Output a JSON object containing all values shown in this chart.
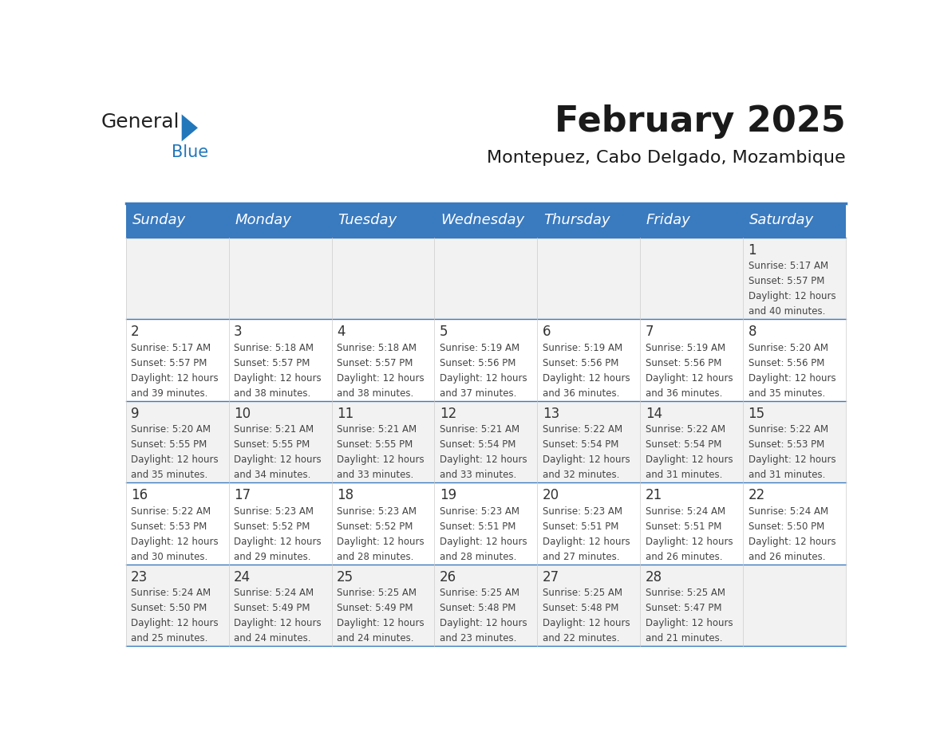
{
  "title": "February 2025",
  "subtitle": "Montepuez, Cabo Delgado, Mozambique",
  "header_bg": "#3a7abf",
  "header_text": "#ffffff",
  "odd_row_bg": "#f2f2f2",
  "even_row_bg": "#ffffff",
  "day_headers": [
    "Sunday",
    "Monday",
    "Tuesday",
    "Wednesday",
    "Thursday",
    "Friday",
    "Saturday"
  ],
  "days": [
    {
      "day": 1,
      "col": 6,
      "row": 0,
      "sunrise": "5:17 AM",
      "sunset": "5:57 PM",
      "daylight_min": "40"
    },
    {
      "day": 2,
      "col": 0,
      "row": 1,
      "sunrise": "5:17 AM",
      "sunset": "5:57 PM",
      "daylight_min": "39"
    },
    {
      "day": 3,
      "col": 1,
      "row": 1,
      "sunrise": "5:18 AM",
      "sunset": "5:57 PM",
      "daylight_min": "38"
    },
    {
      "day": 4,
      "col": 2,
      "row": 1,
      "sunrise": "5:18 AM",
      "sunset": "5:57 PM",
      "daylight_min": "38"
    },
    {
      "day": 5,
      "col": 3,
      "row": 1,
      "sunrise": "5:19 AM",
      "sunset": "5:56 PM",
      "daylight_min": "37"
    },
    {
      "day": 6,
      "col": 4,
      "row": 1,
      "sunrise": "5:19 AM",
      "sunset": "5:56 PM",
      "daylight_min": "36"
    },
    {
      "day": 7,
      "col": 5,
      "row": 1,
      "sunrise": "5:19 AM",
      "sunset": "5:56 PM",
      "daylight_min": "36"
    },
    {
      "day": 8,
      "col": 6,
      "row": 1,
      "sunrise": "5:20 AM",
      "sunset": "5:56 PM",
      "daylight_min": "35"
    },
    {
      "day": 9,
      "col": 0,
      "row": 2,
      "sunrise": "5:20 AM",
      "sunset": "5:55 PM",
      "daylight_min": "35"
    },
    {
      "day": 10,
      "col": 1,
      "row": 2,
      "sunrise": "5:21 AM",
      "sunset": "5:55 PM",
      "daylight_min": "34"
    },
    {
      "day": 11,
      "col": 2,
      "row": 2,
      "sunrise": "5:21 AM",
      "sunset": "5:55 PM",
      "daylight_min": "33"
    },
    {
      "day": 12,
      "col": 3,
      "row": 2,
      "sunrise": "5:21 AM",
      "sunset": "5:54 PM",
      "daylight_min": "33"
    },
    {
      "day": 13,
      "col": 4,
      "row": 2,
      "sunrise": "5:22 AM",
      "sunset": "5:54 PM",
      "daylight_min": "32"
    },
    {
      "day": 14,
      "col": 5,
      "row": 2,
      "sunrise": "5:22 AM",
      "sunset": "5:54 PM",
      "daylight_min": "31"
    },
    {
      "day": 15,
      "col": 6,
      "row": 2,
      "sunrise": "5:22 AM",
      "sunset": "5:53 PM",
      "daylight_min": "31"
    },
    {
      "day": 16,
      "col": 0,
      "row": 3,
      "sunrise": "5:22 AM",
      "sunset": "5:53 PM",
      "daylight_min": "30"
    },
    {
      "day": 17,
      "col": 1,
      "row": 3,
      "sunrise": "5:23 AM",
      "sunset": "5:52 PM",
      "daylight_min": "29"
    },
    {
      "day": 18,
      "col": 2,
      "row": 3,
      "sunrise": "5:23 AM",
      "sunset": "5:52 PM",
      "daylight_min": "28"
    },
    {
      "day": 19,
      "col": 3,
      "row": 3,
      "sunrise": "5:23 AM",
      "sunset": "5:51 PM",
      "daylight_min": "28"
    },
    {
      "day": 20,
      "col": 4,
      "row": 3,
      "sunrise": "5:23 AM",
      "sunset": "5:51 PM",
      "daylight_min": "27"
    },
    {
      "day": 21,
      "col": 5,
      "row": 3,
      "sunrise": "5:24 AM",
      "sunset": "5:51 PM",
      "daylight_min": "26"
    },
    {
      "day": 22,
      "col": 6,
      "row": 3,
      "sunrise": "5:24 AM",
      "sunset": "5:50 PM",
      "daylight_min": "26"
    },
    {
      "day": 23,
      "col": 0,
      "row": 4,
      "sunrise": "5:24 AM",
      "sunset": "5:50 PM",
      "daylight_min": "25"
    },
    {
      "day": 24,
      "col": 1,
      "row": 4,
      "sunrise": "5:24 AM",
      "sunset": "5:49 PM",
      "daylight_min": "24"
    },
    {
      "day": 25,
      "col": 2,
      "row": 4,
      "sunrise": "5:25 AM",
      "sunset": "5:49 PM",
      "daylight_min": "24"
    },
    {
      "day": 26,
      "col": 3,
      "row": 4,
      "sunrise": "5:25 AM",
      "sunset": "5:48 PM",
      "daylight_min": "23"
    },
    {
      "day": 27,
      "col": 4,
      "row": 4,
      "sunrise": "5:25 AM",
      "sunset": "5:48 PM",
      "daylight_min": "22"
    },
    {
      "day": 28,
      "col": 5,
      "row": 4,
      "sunrise": "5:25 AM",
      "sunset": "5:47 PM",
      "daylight_min": "21"
    }
  ],
  "num_rows": 5,
  "num_cols": 7,
  "logo_text_general": "General",
  "logo_text_blue": "Blue",
  "logo_general_color": "#222222",
  "logo_blue_color": "#2277bb",
  "title_fontsize": 32,
  "subtitle_fontsize": 16,
  "header_fontsize": 13,
  "day_number_fontsize": 12,
  "cell_text_fontsize": 8.5,
  "divider_color": "#3a7abf",
  "row_line_color": "#3a7abf",
  "col_line_color": "#cccccc"
}
